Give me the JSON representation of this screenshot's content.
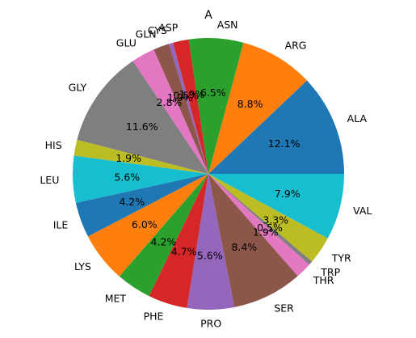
{
  "chart_data": {
    "type": "pie",
    "title": "A",
    "start_angle_deg": 0,
    "direction": "counterclockwise",
    "slices": [
      {
        "label": "ALA",
        "value": 12.1,
        "pct_label": "12.1%",
        "color": "#1f77b4"
      },
      {
        "label": "ARG",
        "value": 8.8,
        "pct_label": "8.8%",
        "color": "#ff7f0e"
      },
      {
        "label": "ASN",
        "value": 6.5,
        "pct_label": "6.5%",
        "color": "#2ca02c"
      },
      {
        "label": "ASP",
        "value": 1.9,
        "pct_label": "1.9%",
        "color": "#d62728"
      },
      {
        "label": "CYS",
        "value": 0.5,
        "pct_label": "0.5%",
        "color": "#9467bd"
      },
      {
        "label": "GLN",
        "value": 1.9,
        "pct_label": "1.9%",
        "color": "#8c564b"
      },
      {
        "label": "GLU",
        "value": 2.8,
        "pct_label": "2.8%",
        "color": "#e377c2"
      },
      {
        "label": "GLY",
        "value": 11.6,
        "pct_label": "11.6%",
        "color": "#7f7f7f"
      },
      {
        "label": "HIS",
        "value": 1.9,
        "pct_label": "1.9%",
        "color": "#bcbd22"
      },
      {
        "label": "LEU",
        "value": 5.6,
        "pct_label": "5.6%",
        "color": "#17becf"
      },
      {
        "label": "ILE",
        "value": 4.2,
        "pct_label": "4.2%",
        "color": "#1f77b4"
      },
      {
        "label": "LYS",
        "value": 6.0,
        "pct_label": "6.0%",
        "color": "#ff7f0e"
      },
      {
        "label": "MET",
        "value": 4.2,
        "pct_label": "4.2%",
        "color": "#2ca02c"
      },
      {
        "label": "PHE",
        "value": 4.7,
        "pct_label": "4.7%",
        "color": "#d62728"
      },
      {
        "label": "PRO",
        "value": 5.6,
        "pct_label": "5.6%",
        "color": "#9467bd"
      },
      {
        "label": "SER",
        "value": 8.4,
        "pct_label": "8.4%",
        "color": "#8c564b"
      },
      {
        "label": "THR",
        "value": 1.9,
        "pct_label": "1.9%",
        "color": "#e377c2"
      },
      {
        "label": "TRP",
        "value": 0.5,
        "pct_label": "0.5%",
        "color": "#7f7f7f"
      },
      {
        "label": "TYR",
        "value": 3.3,
        "pct_label": "3.3%",
        "color": "#bcbd22"
      },
      {
        "label": "VAL",
        "value": 7.9,
        "pct_label": "7.9%",
        "color": "#17becf"
      }
    ]
  }
}
